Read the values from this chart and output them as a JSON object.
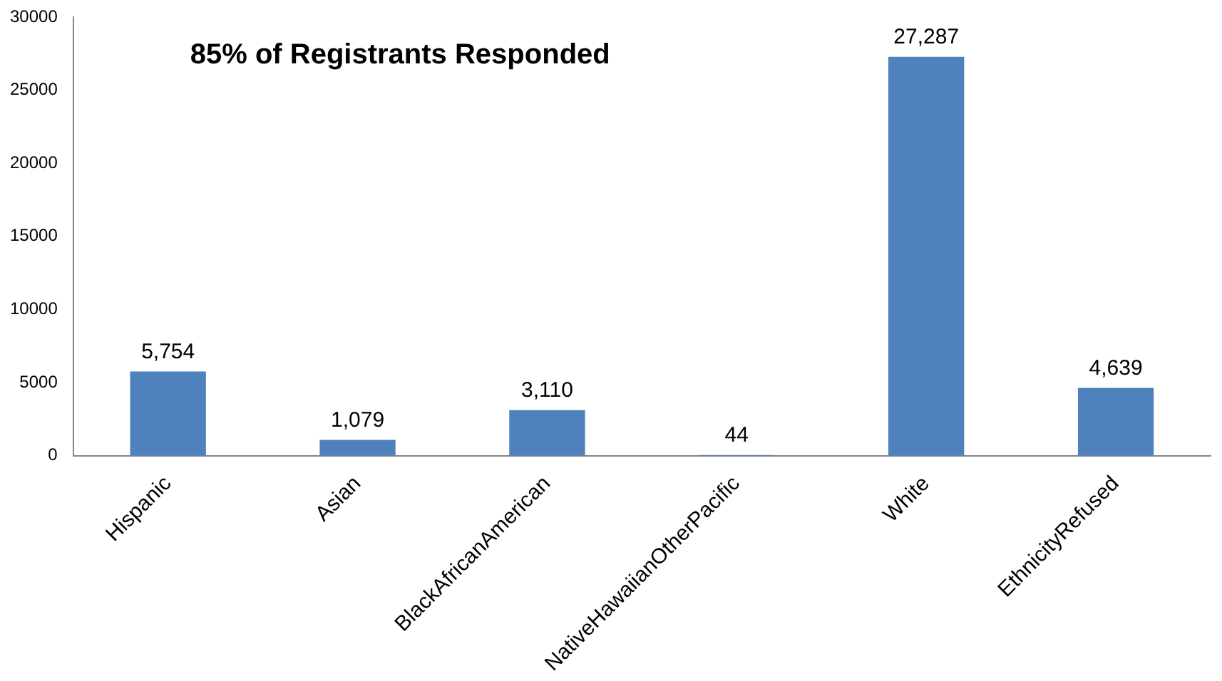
{
  "chart_data": {
    "type": "bar",
    "title": "85% of Registrants Responded",
    "categories": [
      "Hispanic",
      "Asian",
      "BlackAfricanAmerican",
      "NativeHawaiianOtherPacific",
      "White",
      "EthnicityRefused"
    ],
    "values": [
      5754,
      1079,
      3110,
      44,
      27287,
      4639
    ],
    "value_labels": [
      "5,754",
      "1,079",
      "3,110",
      "44",
      "27,287",
      "4,639"
    ],
    "color": "#4f81bd",
    "ylim": [
      0,
      30000
    ],
    "yticks": [
      0,
      5000,
      10000,
      15000,
      20000,
      25000,
      30000
    ],
    "grid": false,
    "legend": false
  }
}
